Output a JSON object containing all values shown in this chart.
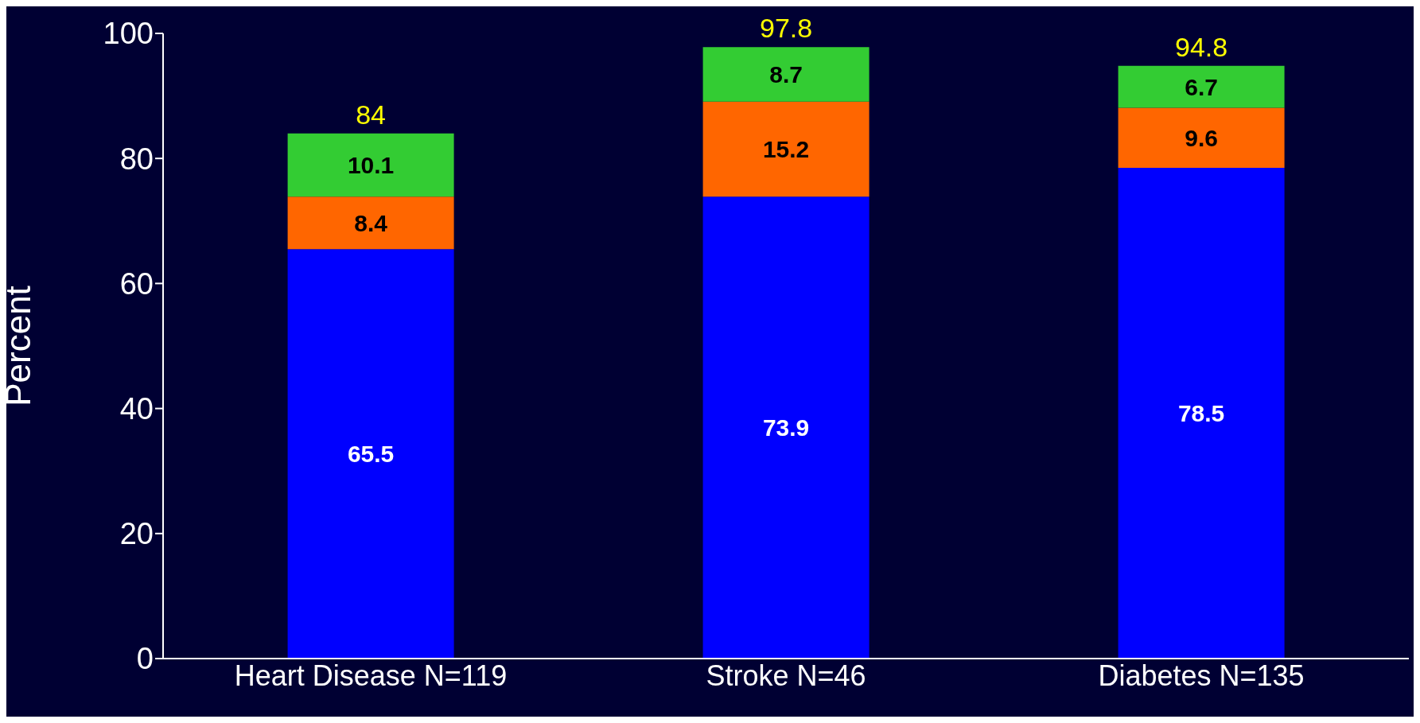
{
  "chart_data": {
    "type": "bar",
    "stacked": true,
    "ylabel": "Percent",
    "categories": [
      "Heart Disease N=119",
      "Stroke N=46",
      "Diabetes N=135"
    ],
    "series": [
      {
        "color": "#0000ff",
        "values": [
          65.5,
          73.9,
          78.5
        ]
      },
      {
        "color": "#ff6600",
        "values": [
          8.4,
          15.2,
          9.6
        ]
      },
      {
        "color": "#33cc33",
        "values": [
          10.1,
          8.7,
          6.7
        ]
      }
    ],
    "data_labels": true,
    "totals": [
      "84",
      "97.8",
      "94.8"
    ],
    "ylim": [
      0,
      100
    ],
    "yticks": [
      0,
      20,
      40,
      60,
      80,
      100
    ],
    "grid": false,
    "legend": false
  }
}
